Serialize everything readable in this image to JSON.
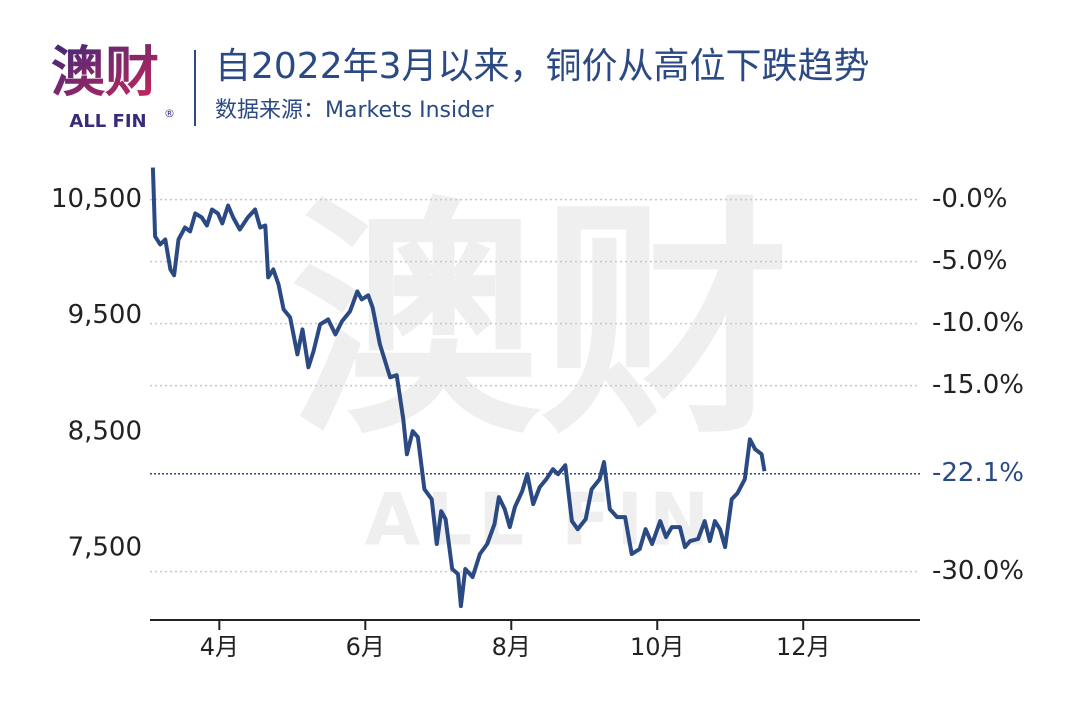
{
  "logo": {
    "text": "澳财",
    "sub": "ALL FIN",
    "mark": "®"
  },
  "watermark": {
    "text": "澳财",
    "sub": "ALL FIN"
  },
  "chart_data": {
    "type": "line",
    "title": "自2022年3月以来，铜价从高位下跌趋势",
    "subtitle": "数据来源：Markets Insider",
    "color": "#2b4a84",
    "x": [
      3.09,
      3.12,
      3.19,
      3.26,
      3.33,
      3.38,
      3.44,
      3.53,
      3.6,
      3.67,
      3.76,
      3.83,
      3.9,
      3.98,
      4.04,
      4.12,
      4.19,
      4.28,
      4.39,
      4.49,
      4.56,
      4.63,
      4.67,
      4.74,
      4.81,
      4.88,
      4.97,
      5.07,
      5.14,
      5.22,
      5.29,
      5.38,
      5.49,
      5.59,
      5.68,
      5.79,
      5.89,
      5.95,
      6.04,
      6.1,
      6.2,
      6.34,
      6.43,
      6.52,
      6.57,
      6.65,
      6.72,
      6.81,
      6.91,
      6.98,
      7.04,
      7.1,
      7.19,
      7.27,
      7.31,
      7.37,
      7.47,
      7.57,
      7.67,
      7.77,
      7.83,
      7.91,
      7.98,
      8.05,
      8.15,
      8.22,
      8.3,
      8.39,
      8.48,
      8.57,
      8.64,
      8.74,
      8.83,
      8.91,
      9.02,
      9.1,
      9.21,
      9.27,
      9.35,
      9.45,
      9.56,
      9.65,
      9.76,
      9.84,
      9.93,
      10.04,
      10.12,
      10.2,
      10.31,
      10.38,
      10.45,
      10.56,
      10.65,
      10.72,
      10.79,
      10.86,
      10.93,
      11.02,
      11.1,
      11.2,
      11.27,
      11.34,
      11.43,
      11.47
    ],
    "values": [
      10775,
      10182,
      10113,
      10156,
      9898,
      9847,
      10156,
      10259,
      10225,
      10380,
      10345,
      10276,
      10414,
      10380,
      10294,
      10448,
      10345,
      10242,
      10345,
      10414,
      10259,
      10276,
      9829,
      9898,
      9769,
      9554,
      9485,
      9167,
      9382,
      9055,
      9193,
      9425,
      9468,
      9339,
      9451,
      9537,
      9709,
      9640,
      9675,
      9571,
      9253,
      8969,
      8987,
      8608,
      8307,
      8505,
      8454,
      8006,
      7920,
      7534,
      7817,
      7749,
      7319,
      7276,
      7000,
      7319,
      7250,
      7448,
      7534,
      7706,
      7938,
      7835,
      7680,
      7852,
      7989,
      8135,
      7878,
      8024,
      8092,
      8178,
      8135,
      8213,
      7731,
      7662,
      7749,
      8006,
      8092,
      8239,
      7835,
      7766,
      7766,
      7448,
      7491,
      7662,
      7534,
      7731,
      7594,
      7680,
      7680,
      7508,
      7559,
      7577,
      7731,
      7559,
      7731,
      7662,
      7508,
      7920,
      7972,
      8092,
      8436,
      8350,
      8307,
      8161
    ],
    "xlim": [
      3.05,
      13.6
    ],
    "xticks": [
      {
        "value": 4,
        "label": "4月"
      },
      {
        "value": 6,
        "label": "6月"
      },
      {
        "value": 8,
        "label": "8月"
      },
      {
        "value": 10,
        "label": "10月"
      },
      {
        "value": 12,
        "label": "12月"
      }
    ],
    "ylim": [
      6880,
      10840
    ],
    "yticks": [
      {
        "value": 7500,
        "label": "7,500"
      },
      {
        "value": 8500,
        "label": "8,500"
      },
      {
        "value": 9500,
        "label": "9,500"
      },
      {
        "value": 10500,
        "label": "10,500"
      }
    ],
    "y2lim": [
      -33.9,
      3.2
    ],
    "y2ticks": [
      {
        "value": 0,
        "label": "-0.0%"
      },
      {
        "value": -5,
        "label": "-5.0%"
      },
      {
        "value": -10,
        "label": "-10.0%"
      },
      {
        "value": -15,
        "label": "-15.0%"
      },
      {
        "value": -30,
        "label": "-30.0%"
      }
    ],
    "grid": true,
    "reference_line": {
      "value": -22.1,
      "label": "-22.1%",
      "axis": "y2"
    }
  }
}
